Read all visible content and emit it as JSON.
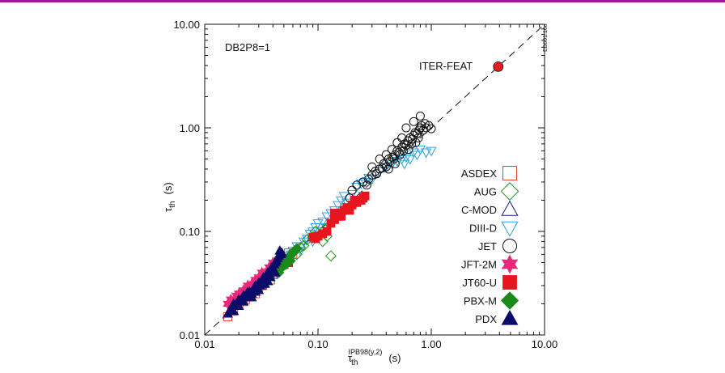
{
  "colors": {
    "topbar": "#9a1a9a",
    "ASDEX": "#e0442c",
    "AUG": "#1e9a1e",
    "C-MOD": "#1a1a8c",
    "DIII-D": "#2aa0e6",
    "JET": "#111111",
    "JFT-2M": "#e8287a",
    "JT60-U": "#e8141e",
    "PBX-M": "#1a8a1a",
    "PDX": "#0a0a6a",
    "ITER-FEAT": "#e02020"
  },
  "chart_data": {
    "type": "scatter",
    "xscale": "log",
    "yscale": "log",
    "xlim": [
      0.01,
      10.0
    ],
    "ylim": [
      0.01,
      10.0
    ],
    "x_ticks": [
      "0.01",
      "0.10",
      "1.00",
      "10.00"
    ],
    "y_ticks": [
      "0.01",
      "0.10",
      "1.00",
      "10.00"
    ],
    "xlabel": {
      "main": "τ",
      "sub": "th",
      "sup": "IPB98(y,2)",
      "unit": "(s)"
    },
    "ylabel": {
      "main": "τ",
      "sub": "th",
      "unit": "(s)"
    },
    "annotation": "DB2P8=1",
    "side_label": "EB601.16d",
    "reference_line": "y = x (dashed)",
    "highlight": {
      "label": "ITER-FEAT",
      "x": 3.9,
      "y": 3.9
    },
    "legend": [
      "ASDEX",
      "AUG",
      "C-MOD",
      "DIII-D",
      "JET",
      "JFT-2M",
      "JT60-U",
      "PBX-M",
      "PDX"
    ],
    "series": [
      {
        "name": "ASDEX",
        "marker": "square-open",
        "points": [
          [
            0.016,
            0.015
          ],
          [
            0.018,
            0.017
          ],
          [
            0.02,
            0.02
          ],
          [
            0.021,
            0.023
          ],
          [
            0.023,
            0.022
          ],
          [
            0.025,
            0.026
          ],
          [
            0.027,
            0.03
          ],
          [
            0.03,
            0.029
          ],
          [
            0.033,
            0.036
          ],
          [
            0.036,
            0.04
          ],
          [
            0.04,
            0.045
          ],
          [
            0.045,
            0.052
          ],
          [
            0.05,
            0.055
          ],
          [
            0.055,
            0.062
          ],
          [
            0.06,
            0.06
          ],
          [
            0.05,
            0.048
          ],
          [
            0.038,
            0.034
          ],
          [
            0.028,
            0.025
          ],
          [
            0.022,
            0.021
          ],
          [
            0.032,
            0.03
          ]
        ]
      },
      {
        "name": "AUG",
        "marker": "diamond-open",
        "points": [
          [
            0.05,
            0.047
          ],
          [
            0.055,
            0.052
          ],
          [
            0.06,
            0.062
          ],
          [
            0.07,
            0.07
          ],
          [
            0.08,
            0.083
          ],
          [
            0.09,
            0.088
          ],
          [
            0.1,
            0.09
          ],
          [
            0.11,
            0.08
          ],
          [
            0.12,
            0.09
          ],
          [
            0.13,
            0.058
          ],
          [
            0.065,
            0.06
          ],
          [
            0.075,
            0.073
          ],
          [
            0.095,
            0.1
          ],
          [
            0.115,
            0.105
          ]
        ]
      },
      {
        "name": "C-MOD",
        "marker": "triangle-up-open",
        "points": [
          [
            0.025,
            0.024
          ],
          [
            0.028,
            0.027
          ],
          [
            0.03,
            0.032
          ],
          [
            0.032,
            0.03
          ],
          [
            0.035,
            0.036
          ],
          [
            0.038,
            0.04
          ],
          [
            0.04,
            0.038
          ],
          [
            0.042,
            0.045
          ],
          [
            0.045,
            0.046
          ],
          [
            0.048,
            0.05
          ],
          [
            0.033,
            0.035
          ],
          [
            0.036,
            0.033
          ]
        ]
      },
      {
        "name": "DIII-D",
        "marker": "triangle-down-open",
        "points": [
          [
            0.04,
            0.04
          ],
          [
            0.045,
            0.048
          ],
          [
            0.05,
            0.055
          ],
          [
            0.055,
            0.058
          ],
          [
            0.06,
            0.065
          ],
          [
            0.065,
            0.072
          ],
          [
            0.07,
            0.07
          ],
          [
            0.075,
            0.08
          ],
          [
            0.08,
            0.085
          ],
          [
            0.085,
            0.095
          ],
          [
            0.09,
            0.1
          ],
          [
            0.095,
            0.11
          ],
          [
            0.1,
            0.12
          ],
          [
            0.11,
            0.125
          ],
          [
            0.12,
            0.14
          ],
          [
            0.13,
            0.15
          ],
          [
            0.14,
            0.16
          ],
          [
            0.15,
            0.18
          ],
          [
            0.16,
            0.2
          ],
          [
            0.17,
            0.22
          ],
          [
            0.18,
            0.19
          ],
          [
            0.2,
            0.23
          ],
          [
            0.22,
            0.27
          ],
          [
            0.24,
            0.29
          ],
          [
            0.26,
            0.3
          ],
          [
            0.28,
            0.33
          ],
          [
            0.3,
            0.32
          ],
          [
            0.35,
            0.38
          ],
          [
            0.4,
            0.42
          ],
          [
            0.45,
            0.45
          ],
          [
            0.5,
            0.48
          ],
          [
            0.55,
            0.5
          ],
          [
            0.6,
            0.52
          ],
          [
            0.7,
            0.58
          ],
          [
            0.8,
            0.62
          ],
          [
            0.9,
            0.58
          ],
          [
            1.0,
            0.6
          ],
          [
            0.75,
            0.55
          ],
          [
            0.65,
            0.5
          ],
          [
            0.58,
            0.45
          ],
          [
            0.25,
            0.22
          ],
          [
            0.19,
            0.17
          ],
          [
            0.11,
            0.1
          ],
          [
            0.07,
            0.065
          ],
          [
            0.058,
            0.06
          ],
          [
            0.12,
            0.11
          ],
          [
            0.15,
            0.14
          ],
          [
            0.09,
            0.08
          ]
        ]
      },
      {
        "name": "JET",
        "marker": "circle-open",
        "points": [
          [
            0.25,
            0.3
          ],
          [
            0.28,
            0.32
          ],
          [
            0.3,
            0.35
          ],
          [
            0.32,
            0.38
          ],
          [
            0.35,
            0.4
          ],
          [
            0.38,
            0.45
          ],
          [
            0.4,
            0.42
          ],
          [
            0.42,
            0.5
          ],
          [
            0.45,
            0.52
          ],
          [
            0.48,
            0.55
          ],
          [
            0.5,
            0.6
          ],
          [
            0.52,
            0.58
          ],
          [
            0.55,
            0.65
          ],
          [
            0.58,
            0.7
          ],
          [
            0.6,
            0.68
          ],
          [
            0.62,
            0.75
          ],
          [
            0.65,
            0.8
          ],
          [
            0.68,
            0.78
          ],
          [
            0.7,
            0.85
          ],
          [
            0.72,
            0.9
          ],
          [
            0.75,
            0.88
          ],
          [
            0.78,
            0.95
          ],
          [
            0.8,
            1.0
          ],
          [
            0.82,
            1.05
          ],
          [
            0.85,
            0.95
          ],
          [
            0.88,
            1.1
          ],
          [
            0.9,
            1.0
          ],
          [
            0.95,
            1.05
          ],
          [
            1.0,
            0.98
          ],
          [
            0.8,
            1.3
          ],
          [
            0.7,
            1.15
          ],
          [
            0.6,
            1.0
          ],
          [
            0.55,
            0.8
          ],
          [
            0.5,
            0.72
          ],
          [
            0.45,
            0.62
          ],
          [
            0.4,
            0.55
          ],
          [
            0.35,
            0.5
          ],
          [
            0.3,
            0.42
          ],
          [
            0.33,
            0.36
          ],
          [
            0.37,
            0.41
          ],
          [
            0.43,
            0.47
          ],
          [
            0.47,
            0.5
          ],
          [
            0.53,
            0.55
          ],
          [
            0.57,
            0.6
          ],
          [
            0.63,
            0.62
          ],
          [
            0.67,
            0.7
          ],
          [
            0.73,
            0.72
          ],
          [
            0.77,
            0.8
          ],
          [
            0.2,
            0.25
          ],
          [
            0.22,
            0.28
          ],
          [
            0.19,
            0.21
          ],
          [
            0.27,
            0.28
          ],
          [
            0.42,
            0.4
          ],
          [
            0.48,
            0.45
          ]
        ]
      },
      {
        "name": "JFT-2M",
        "marker": "star-filled",
        "points": [
          [
            0.016,
            0.02
          ],
          [
            0.017,
            0.022
          ],
          [
            0.018,
            0.021
          ],
          [
            0.019,
            0.024
          ],
          [
            0.02,
            0.025
          ],
          [
            0.021,
            0.023
          ],
          [
            0.022,
            0.027
          ],
          [
            0.023,
            0.026
          ],
          [
            0.024,
            0.03
          ],
          [
            0.026,
            0.031
          ],
          [
            0.028,
            0.034
          ],
          [
            0.03,
            0.036
          ],
          [
            0.032,
            0.04
          ],
          [
            0.027,
            0.028
          ],
          [
            0.025,
            0.028
          ],
          [
            0.029,
            0.032
          ],
          [
            0.031,
            0.033
          ],
          [
            0.034,
            0.038
          ],
          [
            0.037,
            0.045
          ],
          [
            0.04,
            0.05
          ],
          [
            0.045,
            0.052
          ],
          [
            0.05,
            0.055
          ]
        ]
      },
      {
        "name": "JT60-U",
        "marker": "square-filled",
        "points": [
          [
            0.04,
            0.042
          ],
          [
            0.045,
            0.045
          ],
          [
            0.05,
            0.048
          ],
          [
            0.055,
            0.05
          ],
          [
            0.1,
            0.09
          ],
          [
            0.11,
            0.095
          ],
          [
            0.12,
            0.1
          ],
          [
            0.13,
            0.12
          ],
          [
            0.14,
            0.13
          ],
          [
            0.15,
            0.14
          ],
          [
            0.16,
            0.15
          ],
          [
            0.17,
            0.16
          ],
          [
            0.18,
            0.17
          ],
          [
            0.2,
            0.18
          ],
          [
            0.22,
            0.19
          ],
          [
            0.24,
            0.2
          ],
          [
            0.26,
            0.22
          ],
          [
            0.14,
            0.15
          ],
          [
            0.16,
            0.14
          ],
          [
            0.19,
            0.16
          ],
          [
            0.21,
            0.2
          ],
          [
            0.25,
            0.21
          ],
          [
            0.09,
            0.088
          ],
          [
            0.095,
            0.085
          ]
        ]
      },
      {
        "name": "PBX-M",
        "marker": "diamond-filled",
        "points": [
          [
            0.045,
            0.04
          ],
          [
            0.048,
            0.045
          ],
          [
            0.05,
            0.05
          ],
          [
            0.052,
            0.048
          ],
          [
            0.055,
            0.055
          ],
          [
            0.058,
            0.06
          ],
          [
            0.06,
            0.062
          ],
          [
            0.062,
            0.065
          ],
          [
            0.065,
            0.068
          ],
          [
            0.057,
            0.052
          ]
        ]
      },
      {
        "name": "PDX",
        "marker": "triangle-up-filled",
        "points": [
          [
            0.016,
            0.016
          ],
          [
            0.017,
            0.018
          ],
          [
            0.018,
            0.017
          ],
          [
            0.019,
            0.02
          ],
          [
            0.02,
            0.019
          ],
          [
            0.021,
            0.022
          ],
          [
            0.022,
            0.021
          ],
          [
            0.023,
            0.024
          ],
          [
            0.024,
            0.023
          ],
          [
            0.025,
            0.026
          ],
          [
            0.026,
            0.025
          ],
          [
            0.027,
            0.028
          ],
          [
            0.028,
            0.03
          ],
          [
            0.029,
            0.029
          ],
          [
            0.03,
            0.032
          ],
          [
            0.031,
            0.03
          ],
          [
            0.032,
            0.034
          ],
          [
            0.033,
            0.036
          ],
          [
            0.034,
            0.035
          ],
          [
            0.035,
            0.038
          ],
          [
            0.036,
            0.04
          ],
          [
            0.037,
            0.039
          ],
          [
            0.038,
            0.042
          ],
          [
            0.039,
            0.045
          ],
          [
            0.04,
            0.044
          ],
          [
            0.041,
            0.048
          ],
          [
            0.042,
            0.05
          ],
          [
            0.043,
            0.052
          ],
          [
            0.044,
            0.055
          ],
          [
            0.045,
            0.058
          ],
          [
            0.047,
            0.06
          ],
          [
            0.046,
            0.065
          ],
          [
            0.048,
            0.062
          ],
          [
            0.018,
            0.02
          ],
          [
            0.02,
            0.022
          ],
          [
            0.022,
            0.024
          ],
          [
            0.024,
            0.026
          ],
          [
            0.03,
            0.027
          ],
          [
            0.034,
            0.031
          ],
          [
            0.038,
            0.036
          ],
          [
            0.042,
            0.04
          ],
          [
            0.036,
            0.033
          ],
          [
            0.026,
            0.023
          ],
          [
            0.028,
            0.026
          ]
        ]
      }
    ]
  }
}
